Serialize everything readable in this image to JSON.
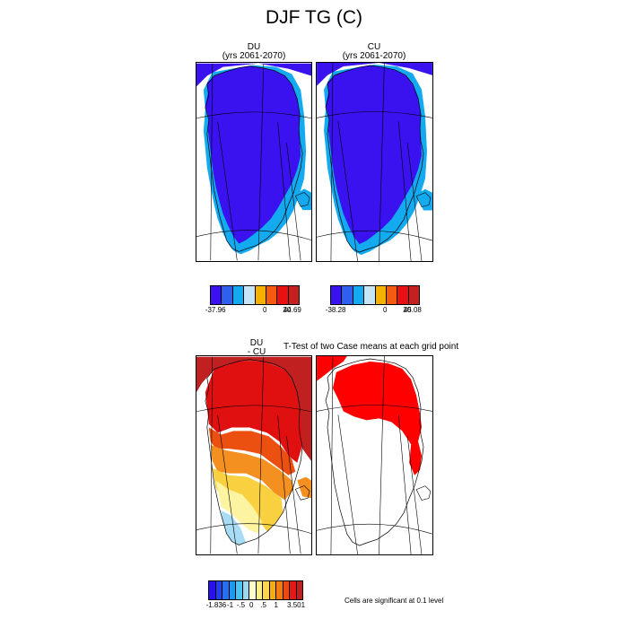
{
  "title": "DJF TG (C)",
  "panels": {
    "du": {
      "name": "DU",
      "years": "(yrs 2061-2070)"
    },
    "cu": {
      "name": "CU",
      "years": "(yrs 2061-2070)"
    },
    "diff": {
      "line1": "DU",
      "line2": "- CU"
    },
    "ttest": {
      "title": "T-Test of two Case means at each grid point"
    }
  },
  "colorbars": {
    "du": {
      "colors": [
        "#3a12f0",
        "#2f5ff0",
        "#14aaf0",
        "#c6e6f8",
        "#f5b000",
        "#f45a10",
        "#e81010",
        "#c42020"
      ],
      "labels": [
        "-37.96",
        "0",
        "20",
        "44.69"
      ]
    },
    "cu": {
      "colors": [
        "#3a12f0",
        "#2f5ff0",
        "#14aaf0",
        "#c6e6f8",
        "#f5b000",
        "#f45a10",
        "#e81010",
        "#c42020"
      ],
      "labels": [
        "-38.28",
        "0",
        "20",
        "45.08"
      ]
    },
    "diff": {
      "colors": [
        "#2a10f0",
        "#2240f0",
        "#2670f0",
        "#1e98f0",
        "#4ac4f0",
        "#9ad8f0",
        "#fdfdd0",
        "#fcf08a",
        "#fcd650",
        "#f6ac10",
        "#f27c10",
        "#ec4a10",
        "#e41818",
        "#c02020"
      ],
      "labels": [
        "-1.836",
        "-1",
        "-.5",
        "0",
        ".5",
        "1",
        "3.501"
      ]
    }
  },
  "significance_note": "Cells are significant at 0.1 level",
  "colors": {
    "cold": "#3a12f0",
    "cool": "#14aaf0",
    "light_blue": "#a8dcf4",
    "pale_yellow": "#fcf4a0",
    "yellow": "#f8d040",
    "orange": "#f49020",
    "red_orange": "#ec5010",
    "red": "#e01010",
    "dark_red": "#c02020",
    "significant": "#ff0000"
  }
}
